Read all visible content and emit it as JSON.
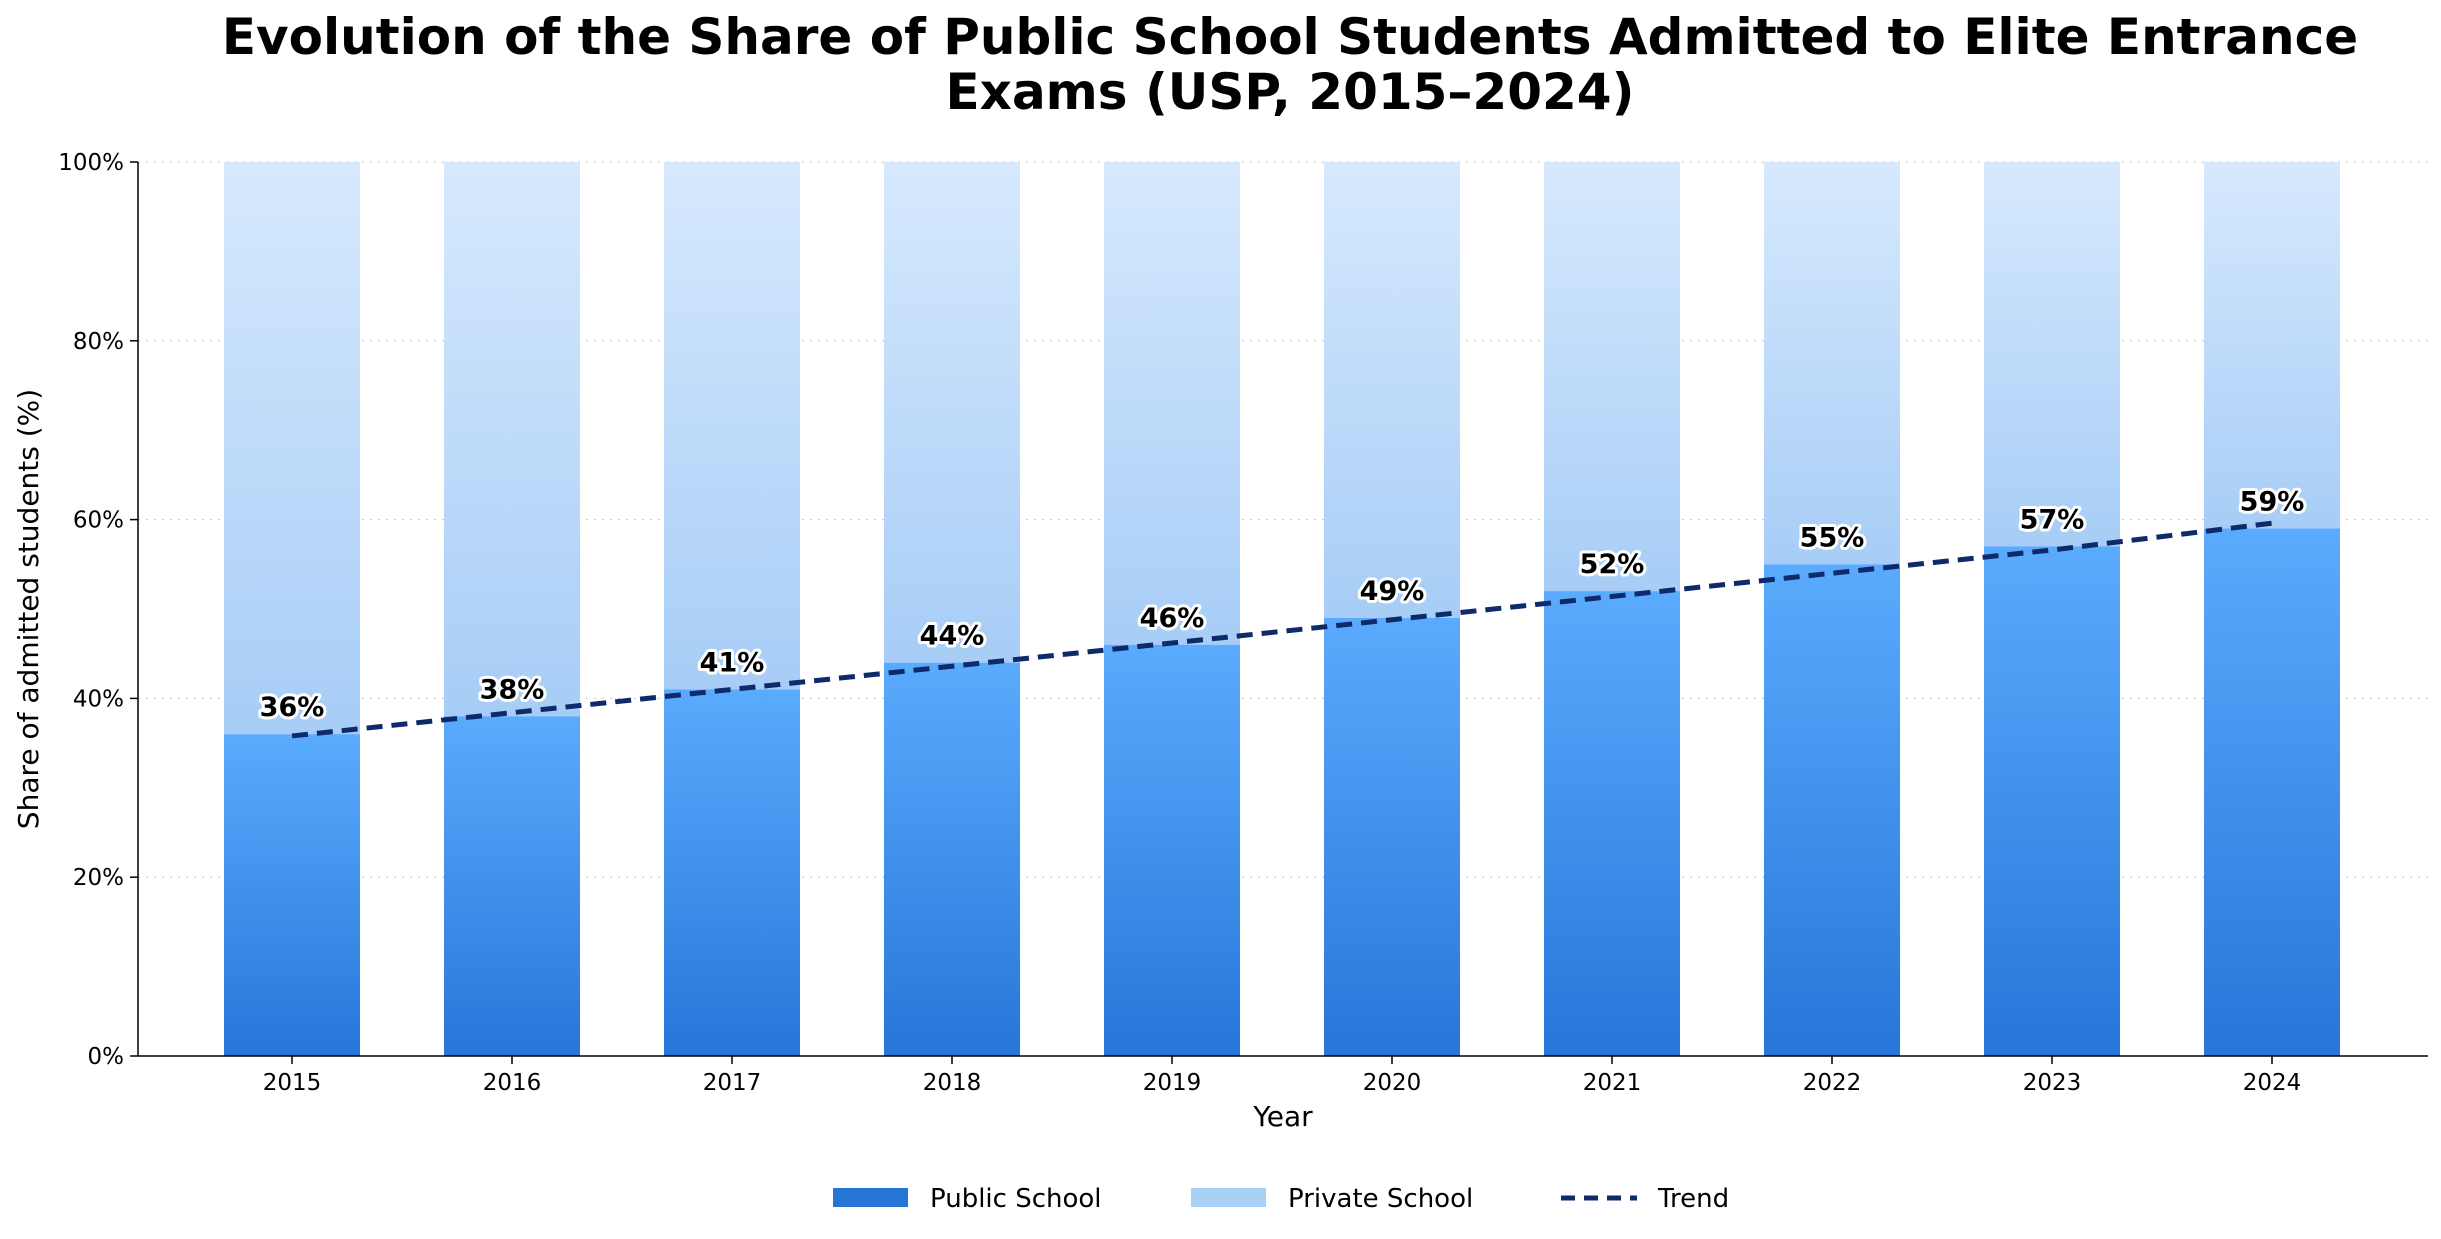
{
  "chart_data": {
    "type": "bar",
    "title_lines": [
      "Evolution of the Share of Public School Students Admitted to Elite Entrance",
      "Exams (USP, 2015–2024)"
    ],
    "xlabel": "Year",
    "ylabel": "Share of admitted students (%)",
    "categories": [
      "2015",
      "2016",
      "2017",
      "2018",
      "2019",
      "2020",
      "2021",
      "2022",
      "2023",
      "2024"
    ],
    "series": [
      {
        "name": "Public School",
        "values": [
          36,
          38,
          41,
          44,
          46,
          49,
          52,
          55,
          57,
          59
        ],
        "color": "#2a78d8"
      },
      {
        "name": "Private School",
        "values": [
          64,
          62,
          59,
          56,
          54,
          51,
          48,
          45,
          43,
          41
        ],
        "color": "#a9d0f5"
      }
    ],
    "trend": {
      "name": "Trend",
      "values": [
        35.8,
        38.4,
        41.0,
        43.6,
        46.2,
        48.8,
        51.4,
        54.0,
        56.6,
        59.6
      ],
      "color": "#0e2a6b"
    },
    "data_labels": [
      "36%",
      "38%",
      "41%",
      "44%",
      "46%",
      "49%",
      "52%",
      "55%",
      "57%",
      "59%"
    ],
    "ylim": [
      0,
      100
    ],
    "yticks": [
      0,
      20,
      40,
      60,
      80,
      100
    ],
    "ytick_labels": [
      "0%",
      "20%",
      "40%",
      "60%",
      "80%",
      "100%"
    ],
    "grid": "horizontal dotted",
    "legend_position": "bottom-center",
    "stacked": true
  }
}
